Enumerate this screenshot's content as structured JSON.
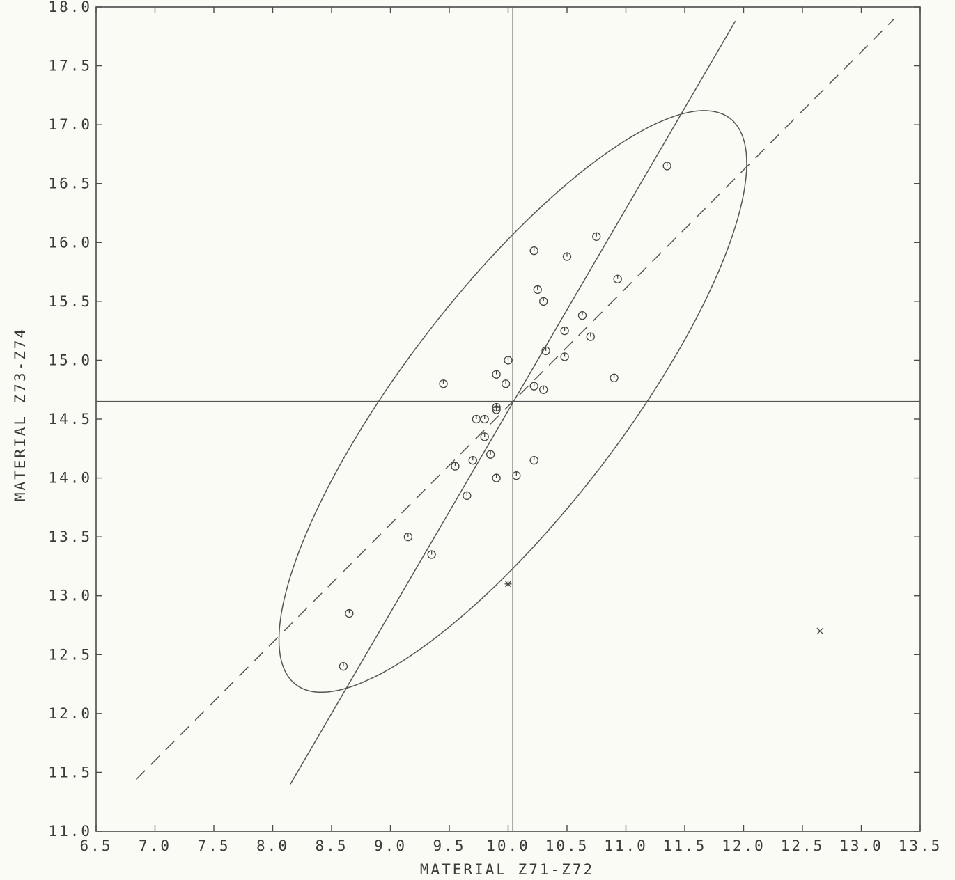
{
  "chart_data": {
    "type": "scatter",
    "xlabel": "MATERIAL Z71-Z72",
    "ylabel": "MATERIAL Z73-Z74",
    "xlim": [
      6.5,
      13.5
    ],
    "ylim": [
      11.0,
      18.0
    ],
    "x_ticks": [
      "6.5",
      "7.0",
      "7.5",
      "8.0",
      "8.5",
      "9.0",
      "9.5",
      "10.0",
      "10.5",
      "11.0",
      "11.5",
      "12.0",
      "12.5",
      "13.0",
      "13.5"
    ],
    "y_ticks": [
      "11.0",
      "11.5",
      "12.0",
      "12.5",
      "13.0",
      "13.5",
      "14.0",
      "14.5",
      "15.0",
      "15.5",
      "16.0",
      "16.5",
      "17.0",
      "17.5",
      "18.0"
    ],
    "reference_lines": {
      "x": 10.04,
      "y": 14.65
    },
    "series": [
      {
        "marker": "circle",
        "points": [
          [
            11.35,
            16.65
          ],
          [
            10.75,
            16.05
          ],
          [
            10.22,
            15.93
          ],
          [
            10.5,
            15.88
          ],
          [
            10.93,
            15.69
          ],
          [
            10.25,
            15.6
          ],
          [
            10.3,
            15.5
          ],
          [
            10.63,
            15.38
          ],
          [
            10.48,
            15.25
          ],
          [
            10.7,
            15.2
          ],
          [
            10.32,
            15.08
          ],
          [
            10.48,
            15.03
          ],
          [
            10.0,
            15.0
          ],
          [
            9.9,
            14.88
          ],
          [
            9.45,
            14.8
          ],
          [
            9.98,
            14.8
          ],
          [
            10.22,
            14.78
          ],
          [
            10.3,
            14.75
          ],
          [
            10.9,
            14.85
          ],
          [
            9.9,
            14.58
          ],
          [
            9.73,
            14.5
          ],
          [
            9.8,
            14.5
          ],
          [
            9.8,
            14.35
          ],
          [
            9.85,
            14.2
          ],
          [
            9.7,
            14.15
          ],
          [
            9.55,
            14.1
          ],
          [
            10.22,
            14.15
          ],
          [
            10.07,
            14.02
          ],
          [
            9.9,
            14.0
          ],
          [
            9.65,
            13.85
          ],
          [
            9.15,
            13.5
          ],
          [
            9.35,
            13.35
          ],
          [
            8.65,
            12.85
          ],
          [
            8.6,
            12.4
          ]
        ]
      },
      {
        "marker": "plus",
        "points": [
          [
            9.9,
            14.6
          ]
        ]
      },
      {
        "marker": "asterisk",
        "points": [
          [
            10.0,
            13.1
          ]
        ]
      },
      {
        "marker": "x",
        "points": [
          [
            12.65,
            12.7
          ]
        ]
      }
    ],
    "solid_line": {
      "x": [
        8.15,
        11.93
      ],
      "y": [
        11.4,
        17.88
      ]
    },
    "dashed_line": {
      "x": [
        6.84,
        13.28
      ],
      "y": [
        11.44,
        17.9
      ]
    },
    "ellipse": {
      "cx": 10.04,
      "cy": 14.65,
      "rx": 3.03,
      "ry": 0.93,
      "angle_deg": 52.5
    }
  }
}
